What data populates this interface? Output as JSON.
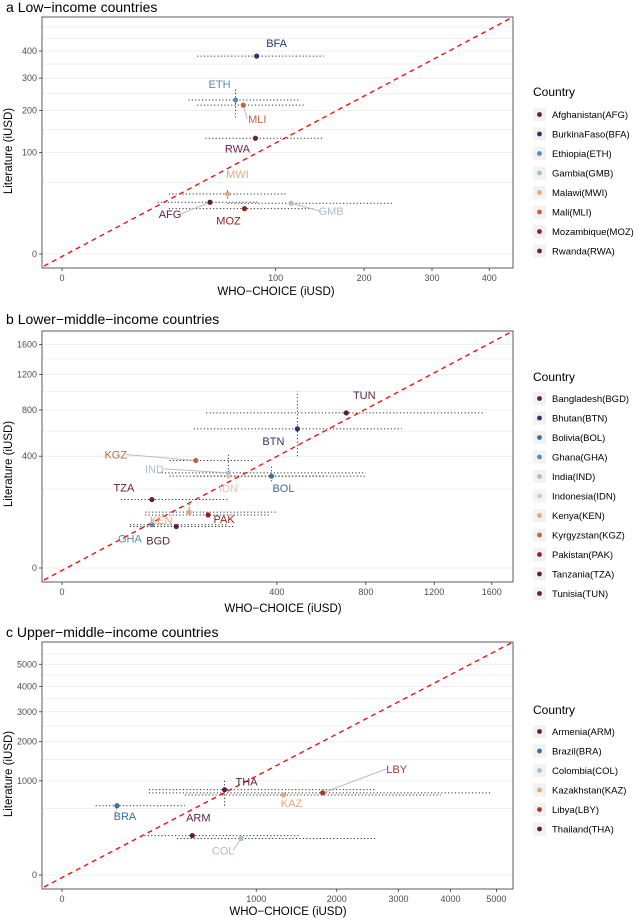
{
  "chart_data": [
    {
      "type": "scatter",
      "tag": "a",
      "title": "Low−income countries",
      "xlabel": "WHO−CHOICE (iUSD)",
      "ylabel": "Literature (iUSD)",
      "scale": "sqrt",
      "xlim": [
        0,
        430
      ],
      "ylim": [
        0,
        500
      ],
      "xticks": [
        0,
        100,
        200,
        300,
        400
      ],
      "yticks": [
        0,
        100,
        200,
        300,
        400
      ],
      "grid": true,
      "legend_title": "Country",
      "legend_position": "right",
      "points": [
        {
          "code": "AFG",
          "name": "Afghanistan(AFG)",
          "color": "#5c1f40",
          "x": 48,
          "y": 26,
          "xlo": 20,
          "xhi": 85,
          "ylo": 26,
          "yhi": 26,
          "label": "AFG"
        },
        {
          "code": "BFA",
          "name": "BurkinaFaso(BFA)",
          "color": "#2a3866",
          "x": 83,
          "y": 380,
          "xlo": 40,
          "xhi": 150,
          "ylo": 380,
          "yhi": 380,
          "label": "BFA"
        },
        {
          "code": "ETH",
          "name": "Ethiopia(ETH)",
          "color": "#5a8bb0",
          "x": 66,
          "y": 230,
          "xlo": 35,
          "xhi": 125,
          "ylo": 180,
          "yhi": 270,
          "label": "ETH"
        },
        {
          "code": "GMB",
          "name": "Gambia(GMB)",
          "color": "#a7bfcd",
          "x": 115,
          "y": 25,
          "xlo": 60,
          "xhi": 240,
          "ylo": 25,
          "yhi": 25,
          "label": "GMB"
        },
        {
          "code": "MWI",
          "name": "Malawi(MWI)",
          "color": "#e0a87e",
          "x": 60,
          "y": 35,
          "xlo": 25,
          "xhi": 110,
          "ylo": 30,
          "yhi": 42,
          "label": "MWI"
        },
        {
          "code": "MLI",
          "name": "Mali(MLI)",
          "color": "#c2643f",
          "x": 72,
          "y": 215,
          "xlo": 40,
          "xhi": 130,
          "ylo": 215,
          "yhi": 215,
          "label": "MLI"
        },
        {
          "code": "MOZ",
          "name": "Mozambique(MOZ)",
          "color": "#8c2323",
          "x": 73,
          "y": 20,
          "xlo": 25,
          "xhi": 140,
          "ylo": 20,
          "yhi": 20,
          "label": "MOZ"
        },
        {
          "code": "RWA",
          "name": "Rwanda(RWA)",
          "color": "#6b1f4a",
          "x": 82,
          "y": 130,
          "xlo": 45,
          "xhi": 150,
          "ylo": 130,
          "yhi": 130,
          "label": "RWA"
        }
      ]
    },
    {
      "type": "scatter",
      "tag": "b",
      "title": "Lower−middle−income countries",
      "xlabel": "WHO−CHOICE (iUSD)",
      "ylabel": "Literature (iUSD)",
      "scale": "sqrt",
      "xlim": [
        0,
        1700
      ],
      "ylim": [
        0,
        1650
      ],
      "xticks": [
        0,
        400,
        800,
        1200,
        1600
      ],
      "yticks": [
        0,
        400,
        800,
        1200,
        1600
      ],
      "grid": true,
      "legend_title": "Country",
      "legend_position": "right",
      "points": [
        {
          "code": "BGD",
          "name": "Bangladesh(BGD)",
          "color": "#5c1f40",
          "x": 113,
          "y": 55,
          "xlo": 40,
          "xhi": 260,
          "ylo": 55,
          "yhi": 55,
          "label": "BGD"
        },
        {
          "code": "BTN",
          "name": "Bhutan(BTN)",
          "color": "#2a3866",
          "x": 480,
          "y": 620,
          "xlo": 150,
          "xhi": 1000,
          "ylo": 400,
          "yhi": 1000,
          "label": "BTN"
        },
        {
          "code": "BOL",
          "name": "Bolivia(BOL)",
          "color": "#3d6e9e",
          "x": 380,
          "y": 270,
          "xlo": 150,
          "xhi": 800,
          "ylo": 240,
          "yhi": 330,
          "label": "BOL"
        },
        {
          "code": "GHA",
          "name": "Ghana(GHA)",
          "color": "#5a8bb0",
          "x": 70,
          "y": 60,
          "xlo": 40,
          "xhi": 240,
          "ylo": 60,
          "yhi": 75,
          "label": "GHA"
        },
        {
          "code": "IND",
          "name": "India(IND)",
          "color": "#a7bfcd",
          "x": 240,
          "y": 290,
          "xlo": 80,
          "xhi": 800,
          "ylo": 290,
          "yhi": 410,
          "label": "IND"
        },
        {
          "code": "IDN",
          "name": "Indonesia(IDN)",
          "color": "#d9c8bf",
          "x": 240,
          "y": 270,
          "xlo": 100,
          "xhi": 600,
          "ylo": 270,
          "yhi": 270,
          "label": "IDN"
        },
        {
          "code": "KEN",
          "name": "Kenya(KEN)",
          "color": "#e0a87e",
          "x": 140,
          "y": 100,
          "xlo": 60,
          "xhi": 400,
          "ylo": 100,
          "yhi": 140,
          "label": "KEN"
        },
        {
          "code": "KGZ",
          "name": "Kyrgyzstan(KGZ)",
          "color": "#c2643f",
          "x": 155,
          "y": 370,
          "xlo": 100,
          "xhi": 320,
          "ylo": 370,
          "yhi": 370,
          "label": "KGZ"
        },
        {
          "code": "PAK",
          "name": "Pakistan(PAK)",
          "color": "#8c2323",
          "x": 185,
          "y": 90,
          "xlo": 60,
          "xhi": 370,
          "ylo": 90,
          "yhi": 90,
          "label": "PAK"
        },
        {
          "code": "TZA",
          "name": "Tanzania(TZA)",
          "color": "#5c1f40",
          "x": 70,
          "y": 150,
          "xlo": 30,
          "xhi": 240,
          "ylo": 150,
          "yhi": 150,
          "label": "TZA"
        },
        {
          "code": "TUN",
          "name": "Tunisia(TUN)",
          "color": "#5e1e3e",
          "x": 700,
          "y": 770,
          "xlo": 180,
          "xhi": 1550,
          "ylo": 770,
          "yhi": 770,
          "label": "TUN"
        }
      ]
    },
    {
      "type": "scatter",
      "tag": "c",
      "title": "Upper−middle−income countries",
      "xlabel": "WHO−CHOICE (iUSD)",
      "ylabel": "Literature (iUSD)",
      "scale": "sqrt",
      "xlim": [
        0,
        5200
      ],
      "ylim": [
        0,
        5600
      ],
      "xticks": [
        0,
        1000,
        2000,
        3000,
        4000,
        5000
      ],
      "yticks": [
        0,
        1000,
        2000,
        3000,
        4000,
        5000
      ],
      "grid": true,
      "legend_title": "Country",
      "legend_position": "right",
      "points": [
        {
          "code": "ARM",
          "name": "Armenia(ARM)",
          "color": "#5c1f40",
          "x": 450,
          "y": 175,
          "xlo": 180,
          "xhi": 1500,
          "ylo": 175,
          "yhi": 175,
          "label": "ARM"
        },
        {
          "code": "BRA",
          "name": "Brazil(BRA)",
          "color": "#3d6e9e",
          "x": 80,
          "y": 540,
          "xlo": 30,
          "xhi": 400,
          "ylo": 540,
          "yhi": 540,
          "label": "BRA"
        },
        {
          "code": "COL",
          "name": "Colombia(COL)",
          "color": "#a7bfcd",
          "x": 850,
          "y": 150,
          "xlo": 350,
          "xhi": 2600,
          "ylo": 150,
          "yhi": 150,
          "label": "COL"
        },
        {
          "code": "KAZ",
          "name": "Kazakhstan(KAZ)",
          "color": "#e0a87e",
          "x": 1300,
          "y": 720,
          "xlo": 400,
          "xhi": 3800,
          "ylo": 720,
          "yhi": 720,
          "label": "KAZ"
        },
        {
          "code": "LBY",
          "name": "Libya(LBY)",
          "color": "#a03a2a",
          "x": 1800,
          "y": 760,
          "xlo": 200,
          "xhi": 4900,
          "ylo": 760,
          "yhi": 760,
          "label": "LBY"
        },
        {
          "code": "THA",
          "name": "Thailand(THA)",
          "color": "#5e1e3e",
          "x": 700,
          "y": 820,
          "xlo": 200,
          "xhi": 2600,
          "ylo": 540,
          "yhi": 1050,
          "label": "THA"
        }
      ]
    }
  ]
}
